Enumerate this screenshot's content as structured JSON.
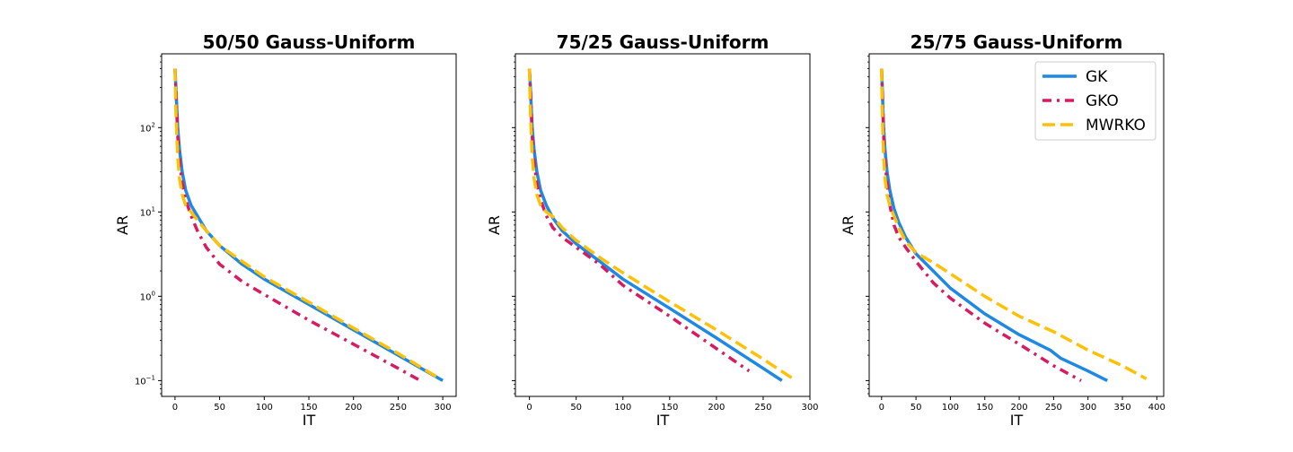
{
  "chart_data": [
    {
      "type": "line",
      "title": "50/50 Gauss-Uniform",
      "xlabel": "IT",
      "ylabel": "AR",
      "yscale": "log",
      "xlim": [
        -15,
        315
      ],
      "ylim": [
        0.065,
        750
      ],
      "xticks": [
        0,
        50,
        100,
        150,
        200,
        250,
        300
      ],
      "yticks": [
        {
          "value": 0.1,
          "base": "10",
          "exp": "−1"
        },
        {
          "value": 1,
          "base": "10",
          "exp": "0"
        },
        {
          "value": 10,
          "base": "10",
          "exp": "1"
        },
        {
          "value": 100,
          "base": "10",
          "exp": "2"
        }
      ],
      "show_ytick_labels": true,
      "legend": null,
      "series": [
        {
          "name": "GK",
          "color": "#1f88e5",
          "dash": "solid",
          "x": [
            0,
            1,
            2,
            3,
            5,
            8,
            12,
            18,
            25,
            35,
            50,
            75,
            100,
            150,
            200,
            250,
            300
          ],
          "y": [
            500,
            300,
            170,
            100,
            55,
            30,
            18,
            12,
            9,
            6.0,
            4.0,
            2.4,
            1.6,
            0.8,
            0.4,
            0.2,
            0.1
          ]
        },
        {
          "name": "GKO",
          "color": "#d81b60",
          "dash": "dashdot",
          "x": [
            0,
            1,
            2,
            3,
            5,
            8,
            12,
            18,
            25,
            35,
            50,
            75,
            100,
            150,
            200,
            250,
            275
          ],
          "y": [
            500,
            280,
            150,
            80,
            40,
            22,
            14,
            9,
            6,
            3.8,
            2.4,
            1.5,
            1.05,
            0.52,
            0.27,
            0.14,
            0.1
          ]
        },
        {
          "name": "MWRKO",
          "color": "#ffc107",
          "dash": "dashed",
          "x": [
            0,
            1,
            2,
            3,
            5,
            8,
            12,
            18,
            25,
            35,
            50,
            75,
            100,
            150,
            200,
            250,
            297
          ],
          "y": [
            500,
            150,
            80,
            45,
            25,
            16,
            12,
            10,
            8,
            6,
            4.0,
            2.6,
            1.7,
            0.85,
            0.42,
            0.21,
            0.105
          ]
        }
      ]
    },
    {
      "type": "line",
      "title": "75/25 Gauss-Uniform",
      "xlabel": "IT",
      "ylabel": "AR",
      "yscale": "log",
      "xlim": [
        -15,
        300
      ],
      "ylim": [
        0.065,
        750
      ],
      "xticks": [
        0,
        50,
        100,
        150,
        200,
        250,
        300
      ],
      "yticks": [
        {
          "value": 0.1,
          "base": "10",
          "exp": "−1"
        },
        {
          "value": 1,
          "base": "10",
          "exp": "0"
        },
        {
          "value": 10,
          "base": "10",
          "exp": "1"
        },
        {
          "value": 100,
          "base": "10",
          "exp": "2"
        }
      ],
      "show_ytick_labels": false,
      "legend": null,
      "series": [
        {
          "name": "GK",
          "color": "#1f88e5",
          "dash": "solid",
          "x": [
            0,
            1,
            2,
            3,
            5,
            8,
            12,
            18,
            25,
            35,
            50,
            75,
            100,
            150,
            200,
            250,
            270
          ],
          "y": [
            500,
            300,
            170,
            100,
            55,
            30,
            18,
            12,
            8.5,
            6.0,
            4.2,
            2.6,
            1.6,
            0.72,
            0.32,
            0.14,
            0.1
          ]
        },
        {
          "name": "GKO",
          "color": "#d81b60",
          "dash": "dashdot",
          "x": [
            0,
            1,
            2,
            3,
            5,
            8,
            12,
            18,
            25,
            35,
            50,
            75,
            100,
            150,
            200,
            235
          ],
          "y": [
            500,
            280,
            150,
            80,
            40,
            22,
            14,
            9,
            6.5,
            5.0,
            3.8,
            2.4,
            1.35,
            0.58,
            0.24,
            0.13
          ]
        },
        {
          "name": "MWRKO",
          "color": "#ffc107",
          "dash": "dashed",
          "x": [
            0,
            1,
            2,
            3,
            5,
            8,
            12,
            18,
            25,
            35,
            50,
            75,
            100,
            150,
            200,
            250,
            285
          ],
          "y": [
            500,
            150,
            80,
            45,
            25,
            16,
            12,
            10,
            8.8,
            6.5,
            4.6,
            2.9,
            1.9,
            0.86,
            0.4,
            0.18,
            0.1
          ]
        }
      ]
    },
    {
      "type": "line",
      "title": "25/75 Gauss-Uniform",
      "xlabel": "IT",
      "ylabel": "AR",
      "yscale": "log",
      "xlim": [
        -18,
        410
      ],
      "ylim": [
        0.065,
        750
      ],
      "xticks": [
        0,
        50,
        100,
        150,
        200,
        250,
        300,
        350,
        400
      ],
      "yticks": [
        {
          "value": 0.1,
          "base": "10",
          "exp": "−1"
        },
        {
          "value": 1,
          "base": "10",
          "exp": "0"
        },
        {
          "value": 10,
          "base": "10",
          "exp": "1"
        },
        {
          "value": 100,
          "base": "10",
          "exp": "2"
        }
      ],
      "show_ytick_labels": false,
      "legend": "top-right",
      "series": [
        {
          "name": "GK",
          "color": "#1f88e5",
          "dash": "solid",
          "x": [
            0,
            1,
            2,
            3,
            5,
            8,
            12,
            18,
            25,
            35,
            50,
            75,
            100,
            150,
            200,
            245,
            260,
            300,
            328
          ],
          "y": [
            500,
            300,
            170,
            100,
            55,
            30,
            18,
            11,
            7.5,
            5.0,
            3.2,
            2.0,
            1.25,
            0.62,
            0.35,
            0.23,
            0.185,
            0.13,
            0.1
          ]
        },
        {
          "name": "GKO",
          "color": "#d81b60",
          "dash": "dashdot",
          "x": [
            0,
            1,
            2,
            3,
            5,
            8,
            12,
            18,
            25,
            35,
            50,
            75,
            100,
            150,
            200,
            250,
            290
          ],
          "y": [
            500,
            280,
            150,
            80,
            40,
            22,
            12,
            7,
            5,
            3.8,
            2.6,
            1.45,
            0.95,
            0.48,
            0.27,
            0.15,
            0.1
          ]
        },
        {
          "name": "MWRKO",
          "color": "#ffc107",
          "dash": "dashed",
          "x": [
            0,
            1,
            2,
            3,
            5,
            8,
            12,
            18,
            25,
            35,
            50,
            75,
            100,
            150,
            200,
            250,
            300,
            350,
            385
          ],
          "y": [
            500,
            150,
            80,
            45,
            25,
            16,
            12,
            9,
            6.5,
            4.5,
            3.3,
            2.5,
            1.85,
            1.0,
            0.58,
            0.38,
            0.23,
            0.15,
            0.105
          ]
        }
      ]
    }
  ]
}
